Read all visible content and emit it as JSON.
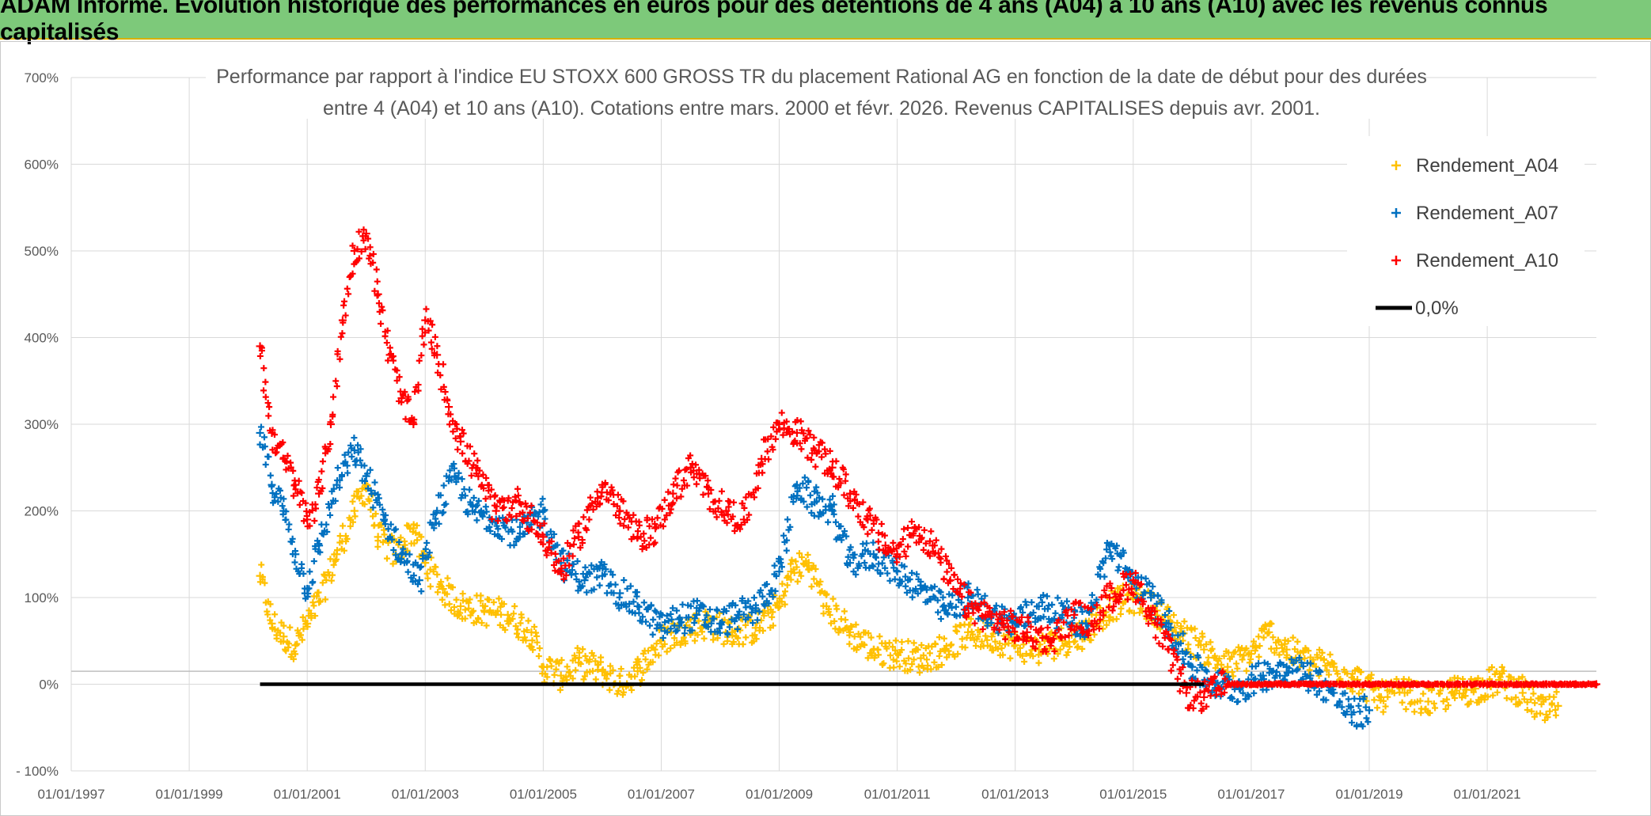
{
  "banner": {
    "title": "ADAM Informe. Evolution historique des performances en euros pour des détentions de 4 ans (A04) à 10 ans (A10) avec les revenus connus capitalisés",
    "background": "#7dc97a"
  },
  "chart_data": {
    "type": "scatter",
    "title_line1": "Performance par rapport à l'indice EU STOXX 600 GROSS TR  du placement Rational AG en fonction de la date de début pour des durées",
    "title_line2": "entre 4 (A04) et 10 ans (A10). Cotations entre mars. 2000 et févr. 2026. Revenus CAPITALISES depuis avr. 2001.",
    "x_tick_labels": [
      "01/01/1997",
      "01/01/1999",
      "01/01/2001",
      "01/01/2003",
      "01/01/2005",
      "01/01/2007",
      "01/01/2009",
      "01/01/2011",
      "01/01/2013",
      "01/01/2015",
      "01/01/2017",
      "01/01/2019",
      "01/01/2021"
    ],
    "xlim": [
      1997.0,
      2022.85
    ],
    "y_tick_labels": [
      "700%",
      "600%",
      "500%",
      "400%",
      "300%",
      "200%",
      "100%",
      "0%",
      "- 100%"
    ],
    "ylim": [
      -100,
      700
    ],
    "legend": [
      {
        "name": "Rendement_A04",
        "color": "#ffc000",
        "marker": "+"
      },
      {
        "name": "Rendement_A07",
        "color": "#0070c0",
        "marker": "+"
      },
      {
        "name": "Rendement_A10",
        "color": "#ff0000",
        "marker": "+"
      },
      {
        "name": "0,0%",
        "color": "#000000",
        "marker": "line"
      }
    ],
    "series": [
      {
        "name": "Rendement_A04",
        "color": "#ffc000",
        "x": [
          2000.2,
          2000.4,
          2000.6,
          2000.8,
          2001.0,
          2001.2,
          2001.5,
          2001.8,
          2002.0,
          2002.2,
          2002.5,
          2002.8,
          2003.0,
          2003.3,
          2003.6,
          2004.0,
          2004.4,
          2004.8,
          2005.0,
          2005.3,
          2005.6,
          2006.0,
          2006.3,
          2006.6,
          2007.0,
          2007.4,
          2007.8,
          2008.2,
          2008.6,
          2009.0,
          2009.2,
          2009.5,
          2009.8,
          2010.2,
          2010.6,
          2011.0,
          2011.4,
          2011.8,
          2012.2,
          2012.6,
          2013.0,
          2013.4,
          2013.8,
          2014.2,
          2014.6,
          2015.0,
          2015.4,
          2015.8,
          2016.2,
          2016.6,
          2017.0,
          2017.3,
          2017.6,
          2018.0,
          2018.4,
          2018.8,
          2019.2,
          2019.6,
          2020.0,
          2020.4,
          2020.8,
          2021.2,
          2021.6,
          2022.0,
          2022.2
        ],
        "y": [
          125,
          70,
          55,
          45,
          70,
          95,
          150,
          200,
          230,
          170,
          150,
          180,
          140,
          110,
          90,
          85,
          80,
          60,
          20,
          10,
          25,
          15,
          0,
          15,
          50,
          65,
          70,
          60,
          65,
          90,
          130,
          140,
          90,
          60,
          40,
          35,
          30,
          40,
          60,
          55,
          45,
          40,
          50,
          60,
          90,
          100,
          85,
          60,
          40,
          20,
          35,
          60,
          40,
          25,
          20,
          5,
          -15,
          -10,
          -20,
          -10,
          -5,
          5,
          -10,
          -35,
          -25
        ]
      },
      {
        "name": "Rendement_A07",
        "color": "#0070c0",
        "x": [
          2000.2,
          2000.4,
          2000.6,
          2000.8,
          2001.0,
          2001.2,
          2001.5,
          2001.8,
          2002.0,
          2002.3,
          2002.6,
          2002.9,
          2003.2,
          2003.5,
          2003.8,
          2004.2,
          2004.6,
          2005.0,
          2005.3,
          2005.7,
          2006.0,
          2006.3,
          2006.6,
          2007.0,
          2007.3,
          2007.6,
          2008.0,
          2008.3,
          2008.6,
          2009.0,
          2009.3,
          2009.6,
          2009.9,
          2010.2,
          2010.6,
          2011.0,
          2011.4,
          2011.8,
          2012.2,
          2012.6,
          2013.0,
          2013.4,
          2013.8,
          2014.2,
          2014.6,
          2015.0,
          2015.3,
          2015.6,
          2016.0,
          2016.4,
          2016.8,
          2017.2,
          2017.6,
          2018.0,
          2018.4,
          2018.7,
          2019.0
        ],
        "y": [
          290,
          230,
          200,
          150,
          110,
          160,
          230,
          270,
          240,
          190,
          150,
          120,
          200,
          240,
          200,
          190,
          170,
          200,
          140,
          120,
          125,
          105,
          90,
          65,
          75,
          80,
          70,
          80,
          85,
          130,
          230,
          210,
          200,
          140,
          150,
          130,
          110,
          85,
          100,
          80,
          70,
          90,
          80,
          70,
          160,
          120,
          100,
          70,
          20,
          0,
          -5,
          10,
          20,
          10,
          -10,
          -35,
          -30
        ]
      },
      {
        "name": "Rendement_A10",
        "color": "#ff0000",
        "x": [
          2000.2,
          2000.4,
          2000.6,
          2000.8,
          2001.0,
          2001.2,
          2001.4,
          2001.6,
          2001.8,
          2002.0,
          2002.2,
          2002.4,
          2002.6,
          2002.8,
          2003.0,
          2003.2,
          2003.4,
          2003.6,
          2003.9,
          2004.2,
          2004.6,
          2005.0,
          2005.3,
          2005.6,
          2006.0,
          2006.3,
          2006.6,
          2006.9,
          2007.2,
          2007.5,
          2007.8,
          2008.1,
          2008.4,
          2008.7,
          2009.0,
          2009.3,
          2009.6,
          2009.9,
          2010.2,
          2010.5,
          2010.8,
          2011.0,
          2011.3,
          2011.6,
          2011.9,
          2012.2,
          2012.5,
          2012.8,
          2013.2,
          2013.6,
          2014.0,
          2014.3,
          2014.6,
          2015.0,
          2015.3,
          2015.6,
          2015.9,
          2016.2,
          2016.6,
          2017.0,
          2017.5,
          2018.0,
          2018.5,
          2019.0,
          2019.5,
          2020.0,
          2020.5,
          2021.0,
          2021.5,
          2022.0,
          2022.5,
          2022.85
        ],
        "y": [
          390,
          290,
          260,
          230,
          190,
          220,
          300,
          420,
          500,
          520,
          450,
          380,
          330,
          300,
          420,
          380,
          320,
          280,
          240,
          200,
          210,
          170,
          130,
          170,
          230,
          200,
          170,
          180,
          220,
          250,
          220,
          200,
          190,
          260,
          300,
          290,
          270,
          250,
          220,
          190,
          160,
          150,
          180,
          160,
          120,
          90,
          80,
          70,
          60,
          50,
          80,
          70,
          100,
          120,
          80,
          40,
          -10,
          -15,
          0,
          0,
          0,
          0,
          0,
          0,
          0,
          0,
          0,
          0,
          0,
          0,
          0,
          0
        ]
      },
      {
        "name": "0,0%",
        "color": "#000000",
        "x": [
          2000.2,
          2016.2
        ],
        "y": [
          0,
          0
        ]
      }
    ]
  }
}
